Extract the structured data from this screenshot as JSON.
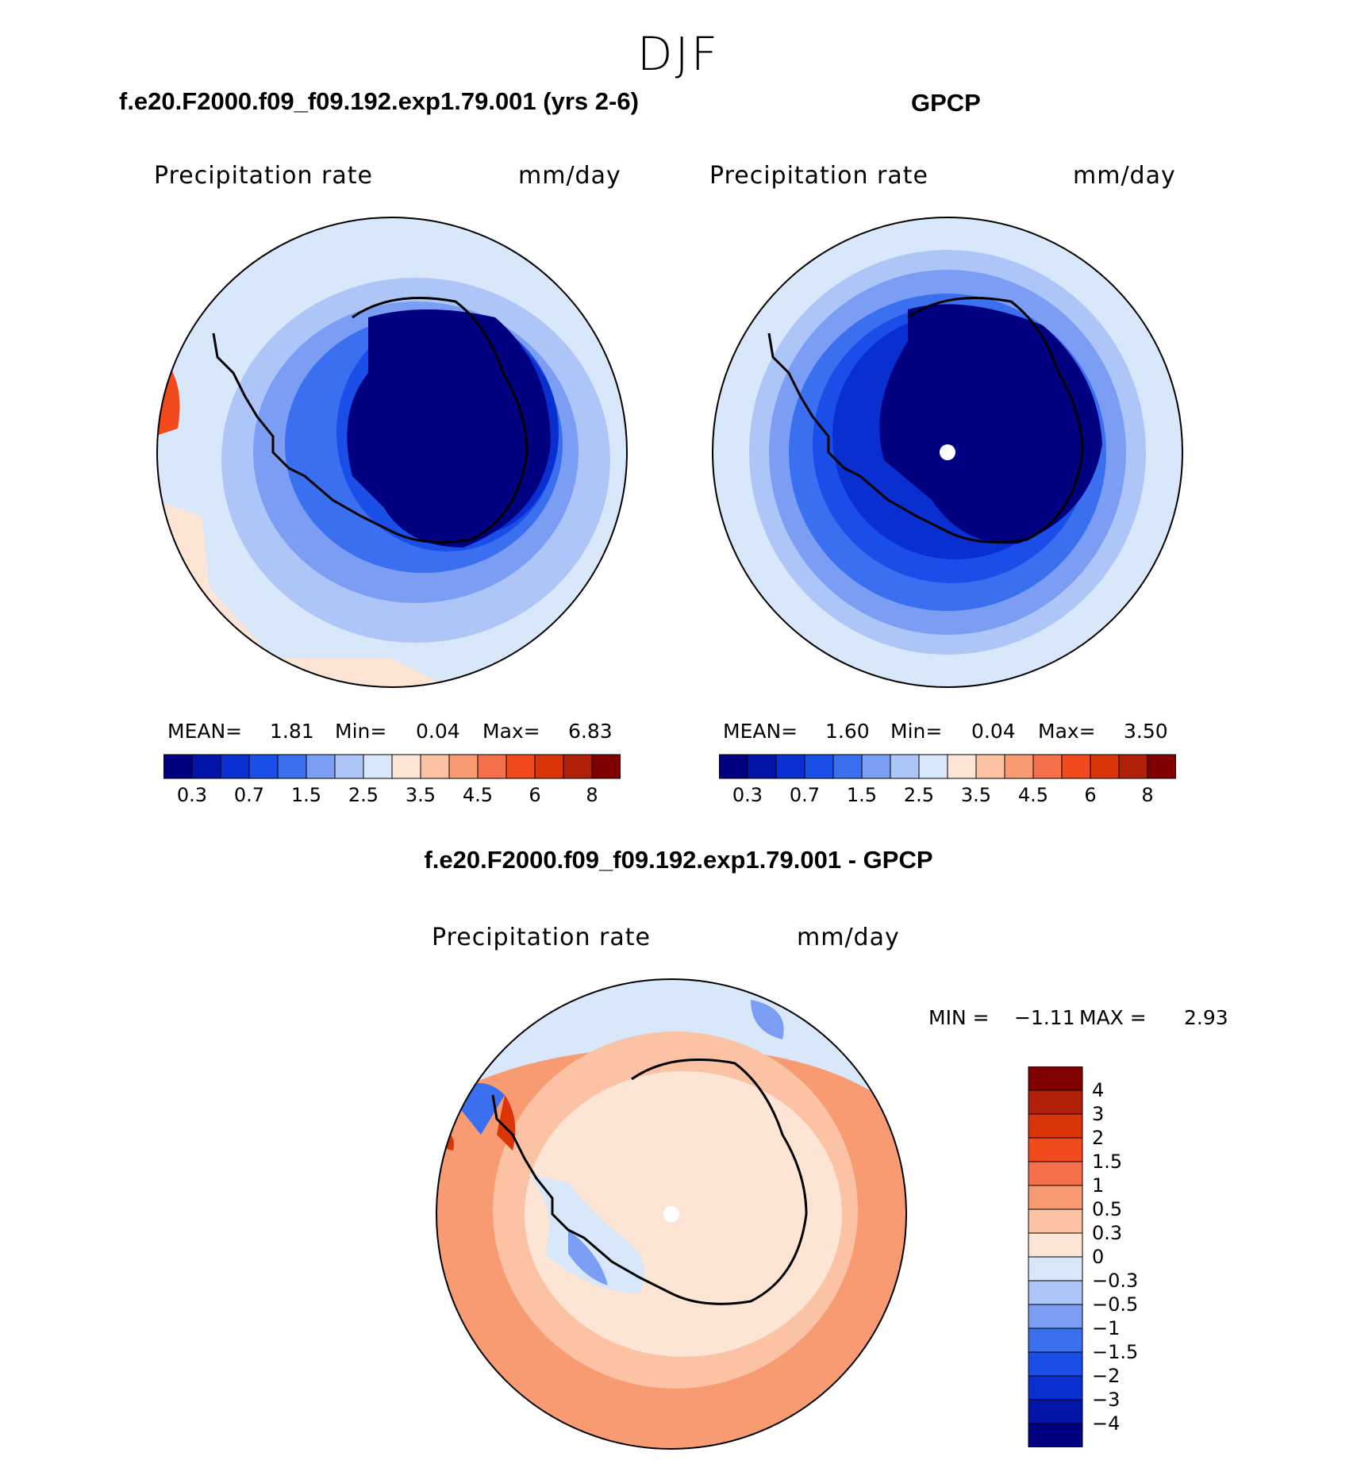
{
  "figure": {
    "season": "DJF",
    "colors": {
      "c0": "#000080",
      "c1": "#0314a8",
      "c2": "#0a2fd0",
      "c3": "#1a4ee8",
      "c4": "#3a6ff0",
      "c5": "#7b9df3",
      "c6": "#aec5f8",
      "c7": "#d9e7fb",
      "c8": "#fde5d5",
      "c9": "#fbc2a4",
      "c10": "#f89a72",
      "c11": "#f5704a",
      "c12": "#f24a1c",
      "c13": "#d93508",
      "c14": "#b02008",
      "c15": "#800000"
    }
  },
  "chart_data": [
    {
      "type": "heatmap",
      "projection": "south-polar-stereographic",
      "title": "f.e20.F2000.f09_f09.192.exp1.79.001 (yrs 2-6)",
      "variable": "Precipitation  rate",
      "units": "mm/day",
      "stats": {
        "mean_label": "MEAN=",
        "mean": "1.81",
        "min_label": "Min=",
        "min": "0.04",
        "max_label": "Max=",
        "max": "6.83"
      },
      "colorbar_labels": [
        "0.3",
        "0.7",
        "1.5",
        "2.5",
        "3.5",
        "4.5",
        "6",
        "8"
      ],
      "colorbar_levels": [
        0.2,
        0.3,
        0.5,
        0.7,
        1,
        1.5,
        2,
        2.5,
        3,
        3.5,
        4,
        4.5,
        5,
        6,
        7,
        8
      ]
    },
    {
      "type": "heatmap",
      "projection": "south-polar-stereographic",
      "title": "GPCP",
      "variable": "Precipitation  rate",
      "units": "mm/day",
      "stats": {
        "mean_label": "MEAN=",
        "mean": "1.60",
        "min_label": "Min=",
        "min": "0.04",
        "max_label": "Max=",
        "max": "3.50"
      },
      "colorbar_labels": [
        "0.3",
        "0.7",
        "1.5",
        "2.5",
        "3.5",
        "4.5",
        "6",
        "8"
      ],
      "colorbar_levels": [
        0.2,
        0.3,
        0.5,
        0.7,
        1,
        1.5,
        2,
        2.5,
        3,
        3.5,
        4,
        4.5,
        5,
        6,
        7,
        8
      ]
    },
    {
      "type": "heatmap",
      "projection": "south-polar-stereographic",
      "title": "f.e20.F2000.f09_f09.192.exp1.79.001 - GPCP",
      "variable": "Precipitation  rate",
      "units": "mm/day",
      "stats": {
        "min_label": "MIN =",
        "min": "−1.11",
        "max_label": "MAX =",
        "max": "2.93"
      },
      "colorbar_labels": [
        "4",
        "3",
        "2",
        "1.5",
        "1",
        "0.5",
        "0.3",
        "0",
        "−0.3",
        "−0.5",
        "−1",
        "−1.5",
        "−2",
        "−3",
        "−4"
      ],
      "colorbar_levels": [
        -4,
        -3,
        -2,
        -1.5,
        -1,
        -0.5,
        -0.3,
        0,
        0.3,
        0.5,
        1,
        1.5,
        2,
        3,
        4
      ]
    }
  ]
}
